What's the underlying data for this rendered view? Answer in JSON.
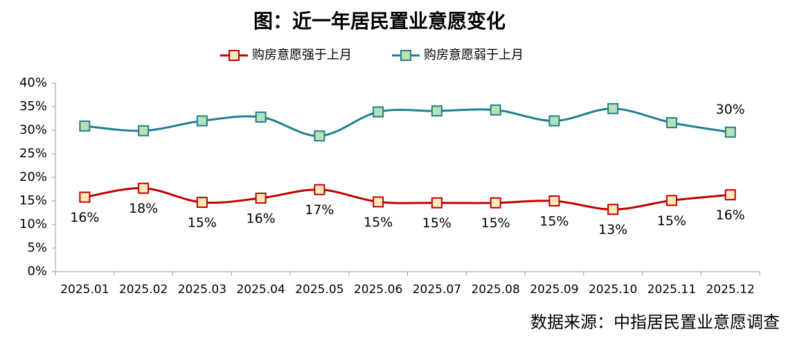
{
  "chart_data": {
    "type": "line",
    "title": "图：近一年居民置业意愿变化",
    "source": "数据来源：中指居民置业意愿调查",
    "categories": [
      "2025.01",
      "2025.02",
      "2025.03",
      "2025.04",
      "2025.05",
      "2025.06",
      "2025.07",
      "2025.08",
      "2025.09",
      "2025.10",
      "2025.11",
      "2025.12"
    ],
    "series": [
      {
        "name": "购房意愿强于上月",
        "color": "#c00000",
        "marker_color": "#fde9bd",
        "values": [
          15.8,
          17.7,
          14.7,
          15.6,
          17.4,
          14.8,
          14.6,
          14.6,
          15.0,
          13.2,
          15.1,
          16.3
        ],
        "value_labels": [
          "16%",
          "18%",
          "15%",
          "16%",
          "17%",
          "15%",
          "15%",
          "15%",
          "15%",
          "13%",
          "15%",
          "16%"
        ]
      },
      {
        "name": "购房意愿弱于上月",
        "color": "#1f7f8f",
        "marker_color": "#b9e0b4",
        "values": [
          30.9,
          29.9,
          32.0,
          32.8,
          28.8,
          33.9,
          34.1,
          34.3,
          32.0,
          34.6,
          31.6,
          29.6
        ],
        "value_labels": [
          null,
          null,
          null,
          null,
          null,
          null,
          null,
          null,
          null,
          null,
          null,
          "30%"
        ]
      }
    ],
    "ylim": [
      0,
      40
    ],
    "yticks": [
      {
        "value": 0,
        "label": "0%"
      },
      {
        "value": 5,
        "label": "5%"
      },
      {
        "value": 10,
        "label": "10%"
      },
      {
        "value": 15,
        "label": "15%"
      },
      {
        "value": 20,
        "label": "20%"
      },
      {
        "value": 25,
        "label": "25%"
      },
      {
        "value": 30,
        "label": "30%"
      },
      {
        "value": 35,
        "label": "35%"
      },
      {
        "value": 40,
        "label": "40%"
      }
    ],
    "grid": false,
    "legend": "top"
  }
}
